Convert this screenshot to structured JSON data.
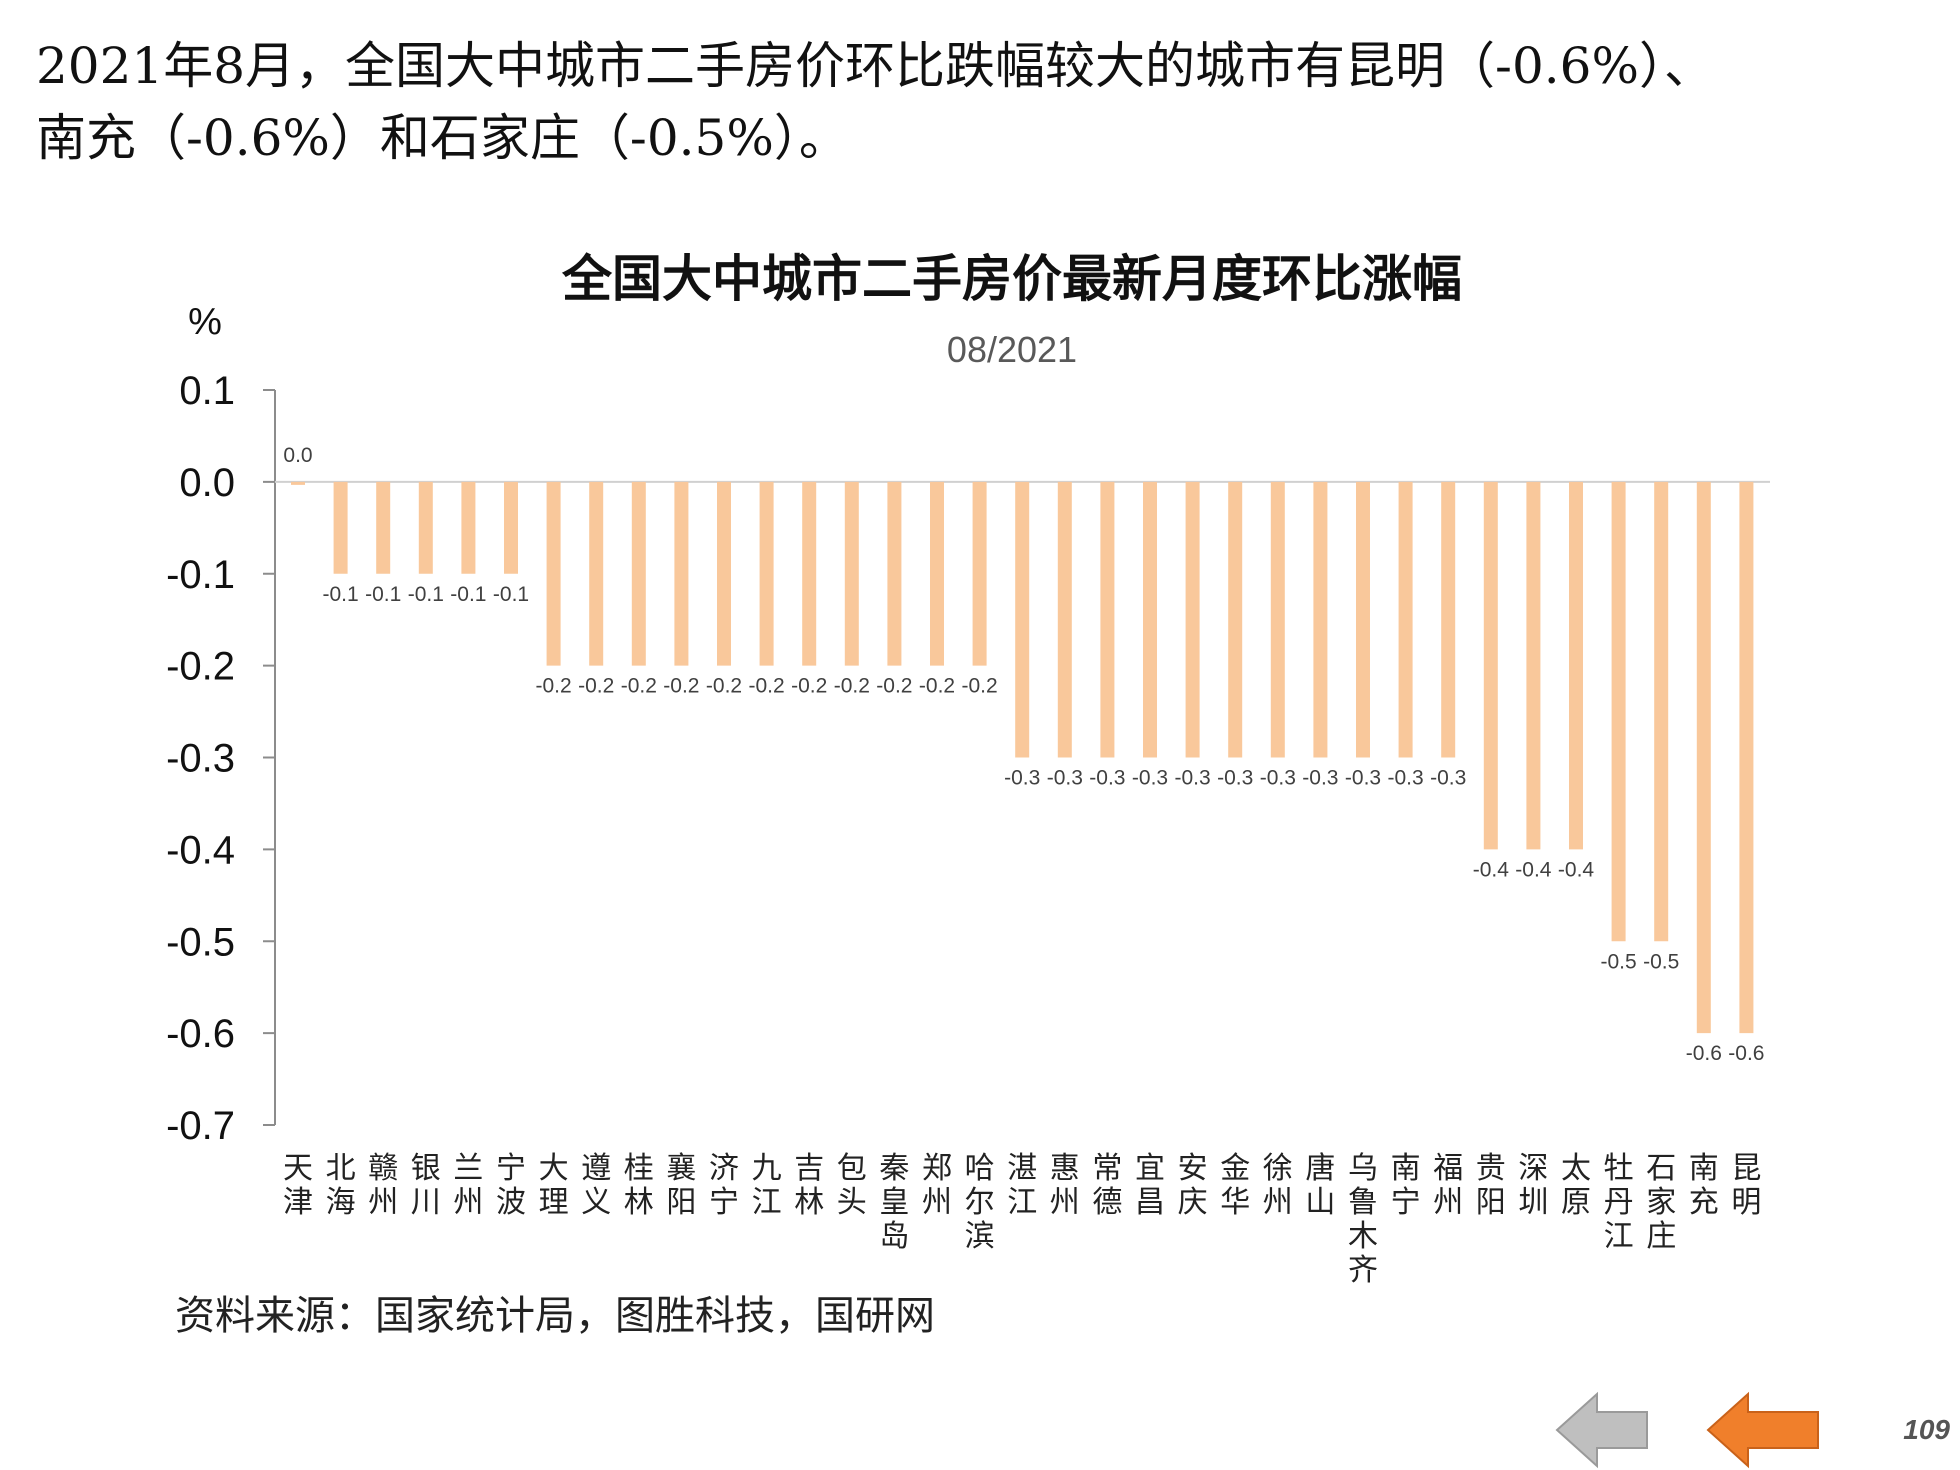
{
  "headline": {
    "line1": "2021年8月，全国大中城市二手房价环比跌幅较大的城市有昆明（-0.6%）、",
    "line2": "南充（-0.6%）和石家庄（-0.5%）。"
  },
  "source_text": "资料来源：国家统计局，图胜科技，国研网",
  "page_number": "109",
  "colors": {
    "bar": "#F9C89B",
    "axis": "#8c8c8c",
    "gridzero": "#d0d0d0",
    "nav_prev": "#bfbfbf",
    "nav_next": "#F07F2B"
  },
  "chart_data": {
    "type": "bar",
    "title": "全国大中城市二手房价最新月度环比涨幅",
    "subtitle": "08/2021",
    "ylabel": "%",
    "xlabel": "",
    "ylim": [
      -0.7,
      0.1
    ],
    "yticks": [
      "0.1",
      "0.0",
      "-0.1",
      "-0.2",
      "-0.3",
      "-0.4",
      "-0.5",
      "-0.6",
      "-0.7"
    ],
    "grid": false,
    "categories": [
      "天津",
      "北海",
      "赣州",
      "银川",
      "兰州",
      "宁波",
      "大理",
      "遵义",
      "桂林",
      "襄阳",
      "济宁",
      "九江",
      "吉林",
      "包头",
      "秦皇岛",
      "郑州",
      "哈尔滨",
      "湛江",
      "惠州",
      "常德",
      "宜昌",
      "安庆",
      "金华",
      "徐州",
      "唐山",
      "乌鲁木齐",
      "南宁",
      "福州",
      "贵阳",
      "深圳",
      "太原",
      "牡丹江",
      "石家庄",
      "南充",
      "昆明"
    ],
    "values": [
      0.0,
      -0.1,
      -0.1,
      -0.1,
      -0.1,
      -0.1,
      -0.2,
      -0.2,
      -0.2,
      -0.2,
      -0.2,
      -0.2,
      -0.2,
      -0.2,
      -0.2,
      -0.2,
      -0.2,
      -0.3,
      -0.3,
      -0.3,
      -0.3,
      -0.3,
      -0.3,
      -0.3,
      -0.3,
      -0.3,
      -0.3,
      -0.3,
      -0.4,
      -0.4,
      -0.4,
      -0.5,
      -0.5,
      -0.6,
      -0.6
    ],
    "data_labels": [
      "0.0",
      "-0.1",
      "-0.1",
      "-0.1",
      "-0.1",
      "-0.1",
      "-0.2",
      "-0.2",
      "-0.2",
      "-0.2",
      "-0.2",
      "-0.2",
      "-0.2",
      "-0.2",
      "-0.2",
      "-0.2",
      "-0.2",
      "-0.3",
      "-0.3",
      "-0.3",
      "-0.3",
      "-0.3",
      "-0.3",
      "-0.3",
      "-0.3",
      "-0.3",
      "-0.3",
      "-0.3",
      "-0.4",
      "-0.4",
      "-0.4",
      "-0.5",
      "-0.5",
      "-0.6",
      "-0.6"
    ]
  }
}
